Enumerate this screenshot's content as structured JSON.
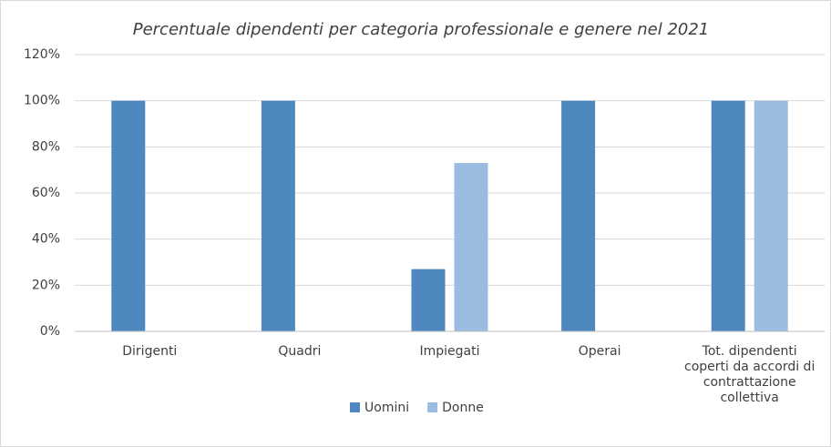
{
  "chart_data": {
    "type": "bar",
    "title": "Percentuale dipendenti per categoria professionale e genere nel 2021",
    "categories": [
      "Dirigenti",
      "Quadri",
      "Impiegati",
      "Operai",
      "Tot. dipendenti coperti da accordi di contrattazione collettiva"
    ],
    "series": [
      {
        "name": "Uomini",
        "color": "#4f88bf",
        "values": [
          100,
          100,
          27,
          100,
          100
        ]
      },
      {
        "name": "Donne",
        "color": "#9bbce0",
        "values": [
          0,
          0,
          73,
          0,
          100
        ]
      }
    ],
    "ylim": [
      0,
      120
    ],
    "yticks": [
      {
        "value": 0,
        "label": "0%"
      },
      {
        "value": 20,
        "label": "20%"
      },
      {
        "value": 40,
        "label": "40%"
      },
      {
        "value": 60,
        "label": "60%"
      },
      {
        "value": 80,
        "label": "80%"
      },
      {
        "value": 100,
        "label": "100%"
      },
      {
        "value": 120,
        "label": "120%"
      }
    ],
    "grid": true,
    "legend": "bottom"
  }
}
